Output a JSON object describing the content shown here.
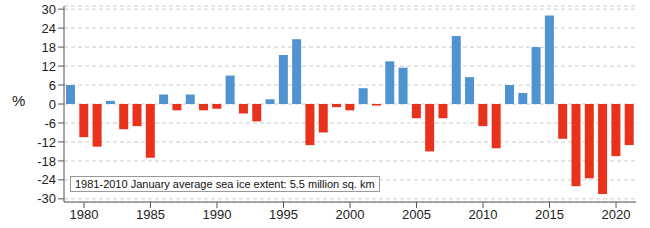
{
  "chart_data": {
    "type": "bar",
    "ylabel": "%",
    "annotation": "1981-2010 January average sea ice extent: 5.5 million sq. km",
    "x": [
      1979,
      1980,
      1981,
      1982,
      1983,
      1984,
      1985,
      1986,
      1987,
      1988,
      1989,
      1990,
      1991,
      1992,
      1993,
      1994,
      1995,
      1996,
      1997,
      1998,
      1999,
      2000,
      2001,
      2002,
      2003,
      2004,
      2005,
      2006,
      2007,
      2008,
      2009,
      2010,
      2011,
      2012,
      2013,
      2014,
      2015,
      2016,
      2017,
      2018,
      2019,
      2020,
      2021
    ],
    "values": [
      6,
      -10.5,
      -13.5,
      1,
      -8,
      -7,
      -17,
      3,
      -2,
      3,
      -2,
      -1.5,
      9,
      -3,
      -5.5,
      1.5,
      15.5,
      20.5,
      -13,
      -9,
      -1,
      -2,
      5,
      -0.5,
      13.5,
      11.5,
      -4.5,
      -15,
      -4.5,
      21.5,
      8.5,
      -7,
      -14,
      6,
      3.5,
      18,
      28,
      -11,
      -26,
      -23.5,
      -28.5,
      -16.5,
      -13
    ],
    "colors": [
      "#4f93d1",
      "#e8321c",
      "#e8321c",
      "#4f93d1",
      "#e8321c",
      "#e8321c",
      "#e8321c",
      "#4f93d1",
      "#e8321c",
      "#4f93d1",
      "#e8321c",
      "#e8321c",
      "#4f93d1",
      "#e8321c",
      "#e8321c",
      "#4f93d1",
      "#4f93d1",
      "#4f93d1",
      "#e8321c",
      "#e8321c",
      "#e8321c",
      "#e8321c",
      "#4f93d1",
      "#e8321c",
      "#4f93d1",
      "#4f93d1",
      "#e8321c",
      "#e8321c",
      "#e8321c",
      "#4f93d1",
      "#4f93d1",
      "#e8321c",
      "#e8321c",
      "#4f93d1",
      "#4f93d1",
      "#4f93d1",
      "#4f93d1",
      "#e8321c",
      "#e8321c",
      "#e8321c",
      "#e8321c",
      "#e8321c",
      "#e8321c"
    ],
    "xlim": [
      1978.5,
      2021.5
    ],
    "xticks": [
      1980,
      1985,
      1990,
      1995,
      2000,
      2005,
      2010,
      2015,
      2020
    ],
    "ylim": [
      -31,
      31
    ],
    "yticks": [
      -30,
      -24,
      -18,
      -12,
      -6,
      0,
      6,
      12,
      18,
      24,
      30
    ],
    "grid": true
  }
}
